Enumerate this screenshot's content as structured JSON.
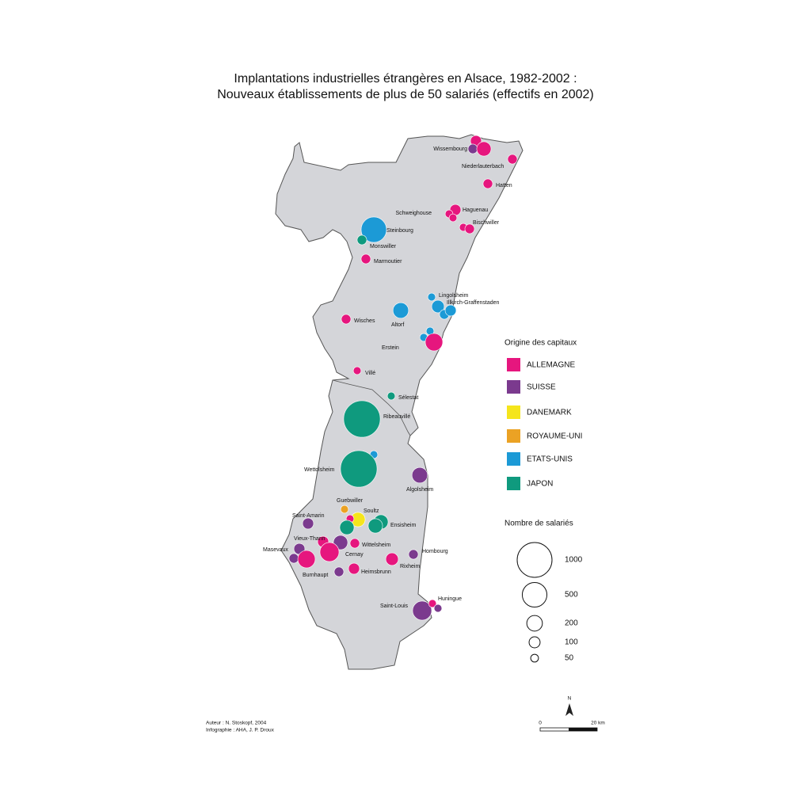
{
  "title": {
    "line1": "Implantations industrielles  étrangères en Alsace, 1982-2002 :",
    "line2": "Nouveaux établissements de plus de 50 salariés (effectifs en 2002)"
  },
  "places": [
    "Wissembourg",
    "Niederlauterbach",
    "Hatten",
    "Schweighouse",
    "Haguenau",
    "Bischwiller",
    "Steinbourg",
    "Monswiller",
    "Marmoutier",
    "Lingolsheim",
    "Illkirch-Graffenstaden",
    "Altorf",
    "Wisches",
    "Erstein",
    "Villé",
    "Sélestat",
    "Ribeauvillé",
    "Wettolsheim",
    "Algolsheim",
    "Guebwiller",
    "Soultz",
    "Ensisheim",
    "Saint-Amarin",
    "Vieux-Thann",
    "Wittelsheim",
    "Masevaux",
    "Cernay",
    "Burnhaupt",
    "Hombourg",
    "Rixheim",
    "Heimsbrunn",
    "Saint-Louis",
    "Huningue"
  ],
  "establishments": [
    {
      "origin": "ALLEMAGNE",
      "employees": 100
    },
    {
      "origin": "SUISSE",
      "employees": 75
    },
    {
      "origin": "ALLEMAGNE",
      "employees": 170
    },
    {
      "origin": "ALLEMAGNE",
      "employees": 75
    },
    {
      "origin": "ALLEMAGNE",
      "employees": 75
    },
    {
      "origin": "ALLEMAGNE",
      "employees": 100
    },
    {
      "origin": "ALLEMAGNE",
      "employees": 50
    },
    {
      "origin": "ALLEMAGNE",
      "employees": 50
    },
    {
      "origin": "ALLEMAGNE",
      "employees": 50
    },
    {
      "origin": "ALLEMAGNE",
      "employees": 75
    },
    {
      "origin": "ETATS-UNIS",
      "employees": 530
    },
    {
      "origin": "JAPON",
      "employees": 75
    },
    {
      "origin": "ALLEMAGNE",
      "employees": 75
    },
    {
      "origin": "ETATS-UNIS",
      "employees": 50
    },
    {
      "origin": "ETATS-UNIS",
      "employees": 130
    },
    {
      "origin": "ETATS-UNIS",
      "employees": 75
    },
    {
      "origin": "ETATS-UNIS",
      "employees": 100
    },
    {
      "origin": "ETATS-UNIS",
      "employees": 200
    },
    {
      "origin": "ALLEMAGNE",
      "employees": 75
    },
    {
      "origin": "ETATS-UNIS",
      "employees": 50
    },
    {
      "origin": "ETATS-UNIS",
      "employees": 50
    },
    {
      "origin": "ALLEMAGNE",
      "employees": 250
    },
    {
      "origin": "ALLEMAGNE",
      "employees": 50
    },
    {
      "origin": "JAPON",
      "employees": 50
    },
    {
      "origin": "JAPON",
      "employees": 1100
    },
    {
      "origin": "ETATS-UNIS",
      "employees": 50
    },
    {
      "origin": "JAPON",
      "employees": 1100
    },
    {
      "origin": "SUISSE",
      "employees": 200
    },
    {
      "origin": "ROYAUME-UNI",
      "employees": 50
    },
    {
      "origin": "DANEMARK",
      "employees": 170
    },
    {
      "origin": "ALLEMAGNE",
      "employees": 50
    },
    {
      "origin": "JAPON",
      "employees": 170
    },
    {
      "origin": "JAPON",
      "employees": 170
    },
    {
      "origin": "JAPON",
      "employees": 170
    },
    {
      "origin": "SUISSE",
      "employees": 100
    },
    {
      "origin": "ALLEMAGNE",
      "employees": 100
    },
    {
      "origin": "SUISSE",
      "employees": 170
    },
    {
      "origin": "ALLEMAGNE",
      "employees": 75
    },
    {
      "origin": "ALLEMAGNE",
      "employees": 300
    },
    {
      "origin": "SUISSE",
      "employees": 100
    },
    {
      "origin": "SUISSE",
      "employees": 75
    },
    {
      "origin": "ALLEMAGNE",
      "employees": 250
    },
    {
      "origin": "SUISSE",
      "employees": 75
    },
    {
      "origin": "ALLEMAGNE",
      "employees": 130
    },
    {
      "origin": "ALLEMAGNE",
      "employees": 100
    },
    {
      "origin": "SUISSE",
      "employees": 75
    },
    {
      "origin": "SUISSE",
      "employees": 300
    },
    {
      "origin": "ALLEMAGNE",
      "employees": 50
    },
    {
      "origin": "SUISSE",
      "employees": 50
    }
  ],
  "legend": {
    "origin_title": "Origine des capitaux",
    "origins": [
      {
        "label": "ALLEMAGNE",
        "color": "#e6167e"
      },
      {
        "label": "SUISSE",
        "color": "#7b3a8e"
      },
      {
        "label": "DANEMARK",
        "color": "#f5e51c"
      },
      {
        "label": "ROYAUME-UNI",
        "color": "#eba224"
      },
      {
        "label": "ETATS-UNIS",
        "color": "#1c9ad6"
      },
      {
        "label": "JAPON",
        "color": "#0f9a7e"
      }
    ],
    "size_title": "Nombre de salariés",
    "sizes": [
      1000,
      500,
      200,
      100,
      50
    ]
  },
  "credits": {
    "author": "Auteur : N. Stoskopf, 2004",
    "infographics": "Infographie : AHA, J. P. Droux"
  },
  "scale": {
    "north": "N",
    "start": "0",
    "end": "20 km"
  }
}
